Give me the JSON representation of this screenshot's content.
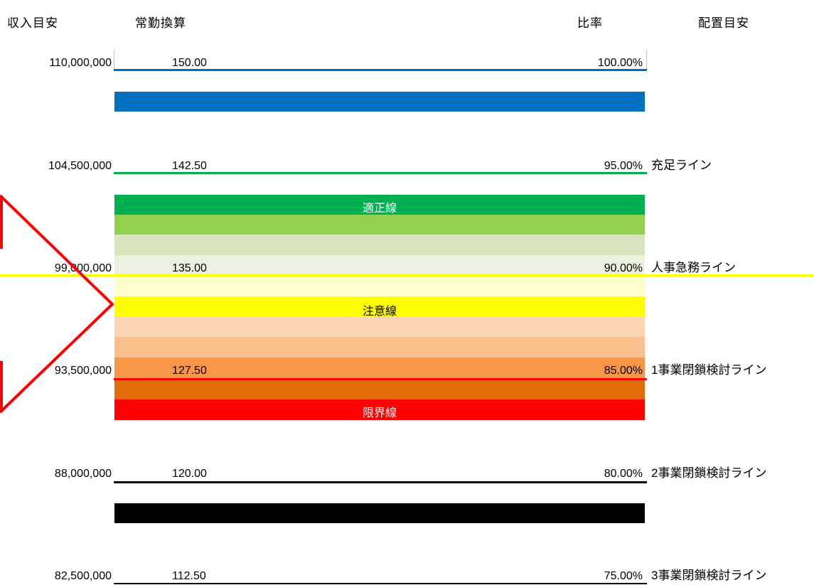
{
  "headers": {
    "income": "収入目安",
    "fte": "常勤換算",
    "ratio": "比率",
    "placement": "配置目安"
  },
  "rows": [
    {
      "income": "110,000,000",
      "fte": "150.00",
      "ratio": "100.00%",
      "label": "",
      "line_color": "#0070c0"
    },
    {
      "income": "104,500,000",
      "fte": "142.50",
      "ratio": "95.00%",
      "label": "充足ライン",
      "line_color": "#00b050"
    },
    {
      "income": "99,000,000",
      "fte": "135.00",
      "ratio": "90.00%",
      "label": "人事急務ライン",
      "line_color": "#ffff00"
    },
    {
      "income": "93,500,000",
      "fte": "127.50",
      "ratio": "85.00%",
      "label": "1事業閉鎖検討ライン",
      "line_color": "#ff0000"
    },
    {
      "income": "88,000,000",
      "fte": "120.00",
      "ratio": "80.00%",
      "label": "2事業閉鎖検討ライン",
      "line_color": "#000000"
    },
    {
      "income": "82,500,000",
      "fte": "112.50",
      "ratio": "75.00%",
      "label": "3事業閉鎖検討ライン",
      "line_color": "#000000"
    }
  ],
  "bands": [
    {
      "color": "#0070c0",
      "label": ""
    },
    {
      "color": "#00b050",
      "label": "適正線",
      "text_color": "#ffffff"
    },
    {
      "color": "#92d050",
      "label": ""
    },
    {
      "color": "#d8e4bc",
      "label": ""
    },
    {
      "color": "#ebf1de",
      "label": ""
    },
    {
      "color": "#ffffcc",
      "label": ""
    },
    {
      "color": "#ffff00",
      "label": "注意線",
      "text_color": "#000000"
    },
    {
      "color": "#fcd5b4",
      "label": ""
    },
    {
      "color": "#fabf8f",
      "label": ""
    },
    {
      "color": "#f79646",
      "label": ""
    },
    {
      "color": "#e26b0a",
      "label": ""
    },
    {
      "color": "#ff0000",
      "label": "限界線",
      "text_color": "#ffffff"
    },
    {
      "color": "#000000",
      "label": ""
    }
  ],
  "chart_data": {
    "type": "table",
    "columns": [
      "収入目安",
      "常勤換算",
      "比率",
      "配置目安"
    ],
    "rows": [
      [
        "110,000,000",
        "150.00",
        "100.00%",
        ""
      ],
      [
        "104,500,000",
        "142.50",
        "95.00%",
        "充足ライン"
      ],
      [
        "99,000,000",
        "135.00",
        "90.00%",
        "人事急務ライン"
      ],
      [
        "93,500,000",
        "127.50",
        "85.00%",
        "1事業閉鎖検討ライン"
      ],
      [
        "88,000,000",
        "120.00",
        "80.00%",
        "2事業閉鎖検討ライン"
      ],
      [
        "82,500,000",
        "112.50",
        "75.00%",
        "3事業閉鎖検討ライン"
      ]
    ],
    "zones": [
      "適正線",
      "注意線",
      "限界線"
    ]
  }
}
